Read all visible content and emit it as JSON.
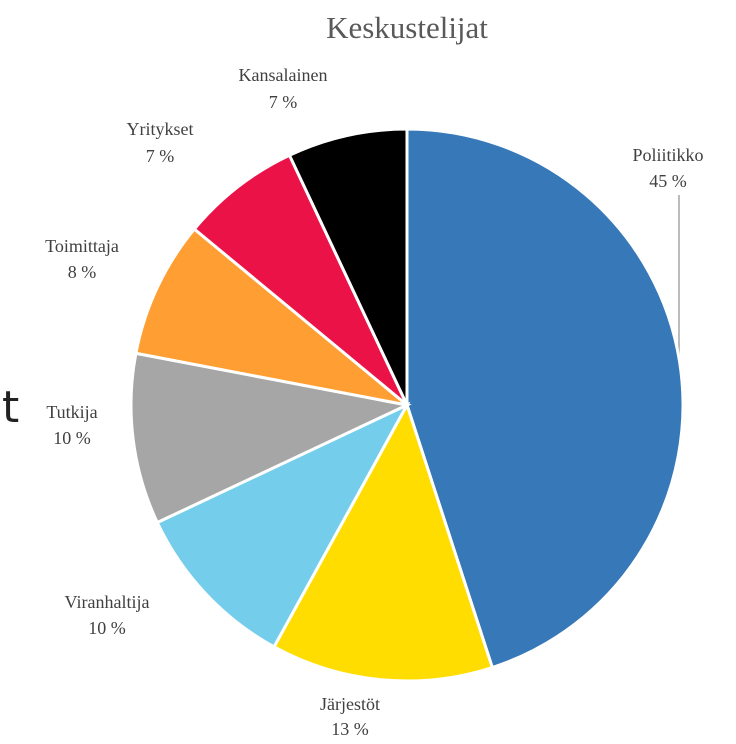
{
  "chart_data": {
    "type": "pie",
    "title": "Keskustelijat",
    "categories": [
      "Poliitikko",
      "Järjestöt",
      "Viranhaltija",
      "Tutkija",
      "Toimittaja",
      "Yritykset",
      "Kansalainen"
    ],
    "values": [
      45,
      13,
      10,
      10,
      8,
      7,
      7
    ],
    "value_labels": [
      "45 %",
      "13 %",
      "10 %",
      "10 %",
      "8 %",
      "7 %",
      "7 %"
    ],
    "colors": [
      "#3678b8",
      "#ffdd00",
      "#74cdea",
      "#a6a6a6",
      "#ff9e33",
      "#eb1248",
      "#000000"
    ]
  },
  "side_text": "t"
}
